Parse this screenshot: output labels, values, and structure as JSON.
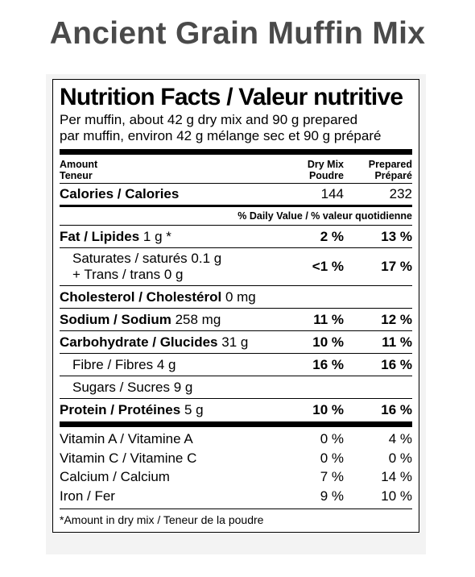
{
  "page_title": "Ancient Grain Muffin Mix",
  "label": {
    "title": "Nutrition Facts / Valeur nutritive",
    "serving_line1": "Per muffin, about 42 g dry mix and 90 g prepared",
    "serving_line2": "par muffin, environ 42 g mélange sec et 90 g préparé",
    "header": {
      "amount": "Amount",
      "teneur": "Teneur",
      "col1_line1": "Dry Mix",
      "col1_line2": "Poudre",
      "col2_line1": "Prepared",
      "col2_line2": "Préparé"
    },
    "calories": {
      "label": "Calories / Calories",
      "dry": "144",
      "prepared": "232"
    },
    "dv_header": "% Daily Value / % valeur quotidienne",
    "nutrients": {
      "fat": {
        "name": "Fat / Lipides",
        "amount": "1 g *",
        "dry": "2 %",
        "prepared": "13 %"
      },
      "saturates": {
        "line1": "Saturates / saturés 0.1 g",
        "line2": "+ Trans / trans 0 g",
        "dry": "<1 %",
        "prepared": "17 %"
      },
      "cholesterol": {
        "name": "Cholesterol / Cholestérol",
        "amount": "0 mg"
      },
      "sodium": {
        "name": "Sodium / Sodium",
        "amount": "258 mg",
        "dry": "11 %",
        "prepared": "12 %"
      },
      "carbohydrate": {
        "name": "Carbohydrate / Glucides",
        "amount": "31 g",
        "dry": "10 %",
        "prepared": "11 %"
      },
      "fibre": {
        "name": "Fibre / Fibres",
        "amount": "4 g",
        "dry": "16 %",
        "prepared": "16 %"
      },
      "sugars": {
        "name": "Sugars / Sucres",
        "amount": "9 g"
      },
      "protein": {
        "name": "Protein / Protéines",
        "amount": "5 g",
        "dry": "10 %",
        "prepared": "16 %"
      }
    },
    "vitamins": [
      {
        "name": "Vitamin A / Vitamine A",
        "dry": "0 %",
        "prepared": "4 %"
      },
      {
        "name": "Vitamin C / Vitamine C",
        "dry": "0 %",
        "prepared": "0 %"
      },
      {
        "name": "Calcium / Calcium",
        "dry": "7 %",
        "prepared": "14 %"
      },
      {
        "name": "Iron / Fer",
        "dry": "9 %",
        "prepared": "10 %"
      }
    ],
    "footnote": "*Amount in dry mix / Teneur de la poudre"
  }
}
